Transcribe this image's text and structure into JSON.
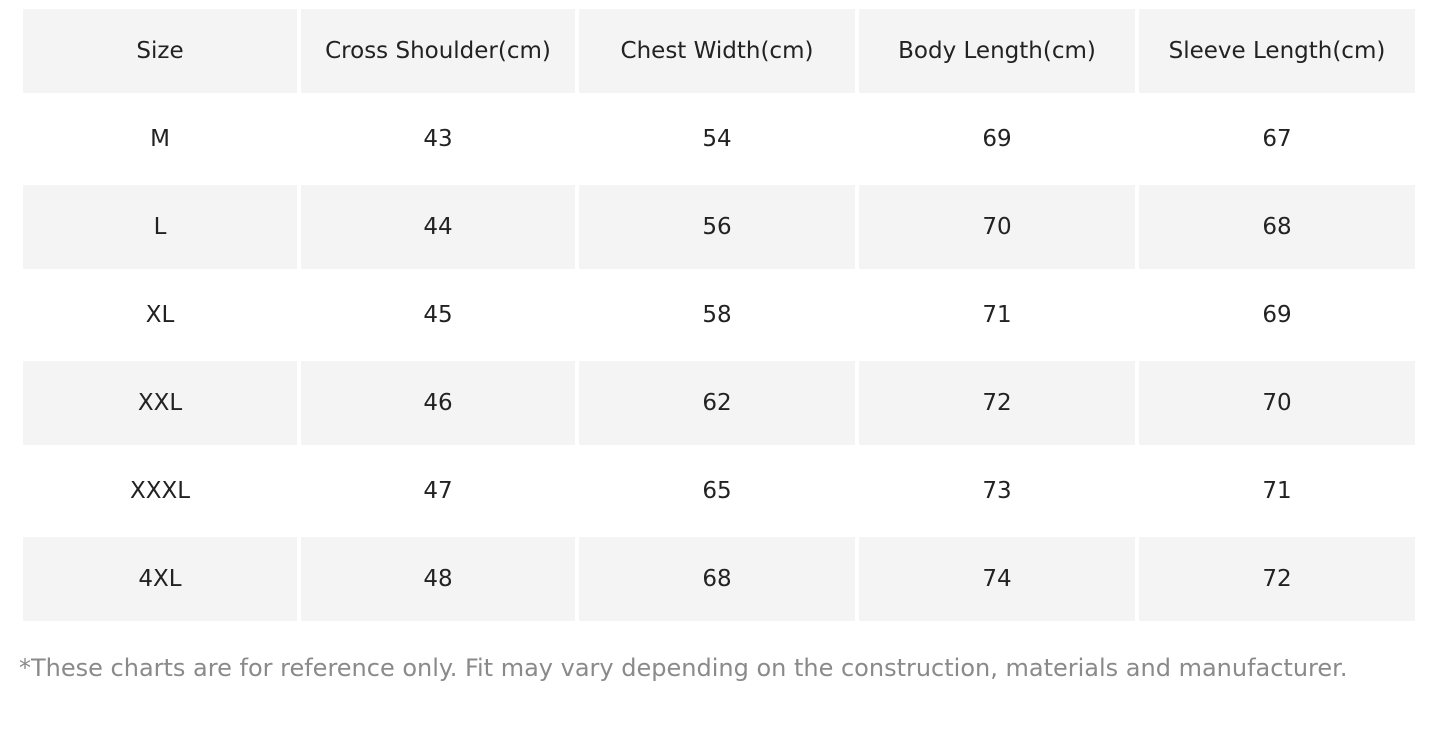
{
  "table": {
    "header": [
      "Size",
      "Cross Shoulder(cm)",
      "Chest Width(cm)",
      "Body Length(cm)",
      "Sleeve Length(cm)"
    ],
    "rows": [
      [
        "M",
        43,
        54,
        69,
        67
      ],
      [
        "L",
        44,
        56,
        70,
        68
      ],
      [
        "XL",
        45,
        58,
        71,
        69
      ],
      [
        "XXL",
        46,
        62,
        72,
        70
      ],
      [
        "XXXL",
        47,
        65,
        73,
        71
      ],
      [
        "4XL",
        48,
        68,
        74,
        72
      ]
    ]
  },
  "note": "*These charts are for reference only. Fit may vary depending on the construction, materials and manufacturer."
}
